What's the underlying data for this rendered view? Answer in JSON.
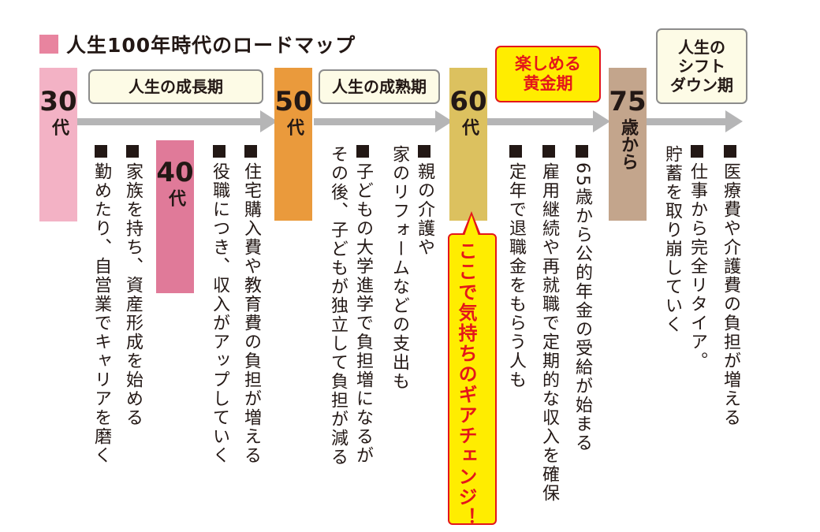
{
  "title": "人生100年時代のロードマップ",
  "colors": {
    "title_square": "#e8849f",
    "arrow": "#b5b5b6",
    "age30": "#f3b2c5",
    "age40": "#e07a99",
    "age50": "#ea9a3c",
    "age60": "#dcc15f",
    "age75": "#c3a58c",
    "gold_fill": "#ffed00",
    "gold_text": "#e4161a"
  },
  "ages": {
    "a30": {
      "num": "30",
      "unit": "代"
    },
    "a40": {
      "num": "40",
      "unit": "代"
    },
    "a50": {
      "num": "50",
      "unit": "代"
    },
    "a60": {
      "num": "60",
      "unit": "代"
    },
    "a75": {
      "num": "75",
      "unit": "歳から"
    }
  },
  "stages": {
    "growth": "人生の成長期",
    "maturity": "人生の成熟期",
    "golden": "楽しめる黄金期",
    "golden_line1": "楽しめる",
    "golden_line2": "黄金期",
    "shiftdown_line1": "人生の",
    "shiftdown_line2": "シフト",
    "shiftdown_line3": "ダウン期"
  },
  "items": {
    "i30": "勤めたり、自営業でキャリアを磨く",
    "i30b": "家族を持ち、資産形成を始める",
    "i40a": "役職につき、収入がアップしていく",
    "i40b": "住宅購入費や教育費の負担が増える",
    "i50a_1": "子どもの大学進学で負担増になるが",
    "i50a_2": "その後、子どもが独立して負担が減る",
    "i50b_1": "親の介護や",
    "i50b_2": "家のリフォームなどの支出も",
    "i60a": "定年で退職金をもらう人も",
    "i60b": "雇用継続や再就職で定期的な収入を確保",
    "i60c": "65歳から公的年金の受給が始まる",
    "i75a_1": "仕事から完全リタイア。",
    "i75a_2": "貯蓄を取り崩していく",
    "i75b": "医療費や介護費の負担が増える"
  },
  "callout": "ここで気持ちのギアチェンジ！"
}
